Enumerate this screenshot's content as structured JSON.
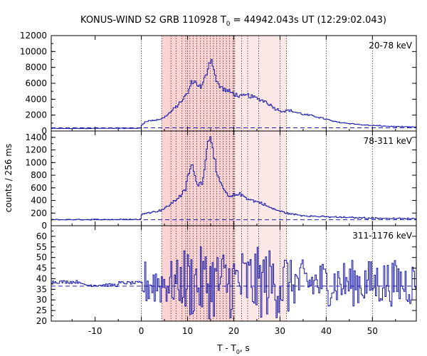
{
  "chart_data": {
    "type": "line",
    "title_prefix": "KONUS-WIND S2 GRB 110928 T",
    "title_sub": "0",
    "title_suffix": " = 44942.043s UT (12:29:02.043)",
    "ylabel": "counts / 256 ms",
    "xlabel_prefix": "T - T",
    "xlabel_sub": "0",
    "xlabel_suffix": ", s",
    "xlim": [
      -19.5,
      59.5
    ],
    "x_ticks": [
      -10,
      0,
      10,
      20,
      30,
      40,
      50
    ],
    "grid": "vertical dotted lines at tick positions",
    "shaded_interval": [
      4.4,
      20.2,
      31.4
    ],
    "spectral_interval_boundaries": [
      0,
      4.4,
      6.4,
      7.5,
      8.8,
      9.6,
      10.5,
      11.2,
      12.0,
      12.8,
      13.5,
      14.2,
      14.9,
      15.6,
      16.3,
      17.0,
      17.7,
      18.4,
      19.1,
      19.8,
      20.2,
      21.7,
      23.0,
      25.4,
      31.4
    ],
    "panels": [
      {
        "label": "20-78 keV",
        "ylim": [
          0,
          12000
        ],
        "y_ticks": [
          0,
          2000,
          4000,
          6000,
          8000,
          10000,
          12000
        ],
        "background": 400,
        "keyframes": [
          [
            -19.5,
            320
          ],
          [
            -0.2,
            340
          ],
          [
            0.1,
            750
          ],
          [
            1.0,
            1250
          ],
          [
            3.0,
            1350
          ],
          [
            4.5,
            1550
          ],
          [
            6.0,
            2200
          ],
          [
            8.0,
            3300
          ],
          [
            10.0,
            4700
          ],
          [
            11.0,
            6300
          ],
          [
            12.0,
            6000
          ],
          [
            13.0,
            5400
          ],
          [
            14.0,
            7000
          ],
          [
            14.6,
            8500
          ],
          [
            15.0,
            9100
          ],
          [
            15.6,
            8300
          ],
          [
            16.2,
            6200
          ],
          [
            17.0,
            5600
          ],
          [
            18.0,
            5200
          ],
          [
            20.0,
            4700
          ],
          [
            21.5,
            4300
          ],
          [
            23.0,
            4500
          ],
          [
            25.0,
            4100
          ],
          [
            27.0,
            3700
          ],
          [
            29.0,
            2800
          ],
          [
            30.5,
            2500
          ],
          [
            32.0,
            2600
          ],
          [
            35.0,
            2100
          ],
          [
            38.0,
            1800
          ],
          [
            42.0,
            1150
          ],
          [
            48.0,
            760
          ],
          [
            54.0,
            580
          ],
          [
            59.5,
            480
          ]
        ]
      },
      {
        "label": "78-311 keV",
        "ylim": [
          0,
          1500
        ],
        "y_ticks": [
          0,
          200,
          400,
          600,
          800,
          1000,
          1200,
          1400
        ],
        "background": 95,
        "keyframes": [
          [
            -19.5,
            95
          ],
          [
            -0.2,
            100
          ],
          [
            0.1,
            170
          ],
          [
            1.0,
            210
          ],
          [
            3.0,
            220
          ],
          [
            5.0,
            270
          ],
          [
            7.0,
            380
          ],
          [
            8.5,
            480
          ],
          [
            9.5,
            560
          ],
          [
            10.3,
            850
          ],
          [
            11.0,
            980
          ],
          [
            11.6,
            760
          ],
          [
            12.4,
            650
          ],
          [
            13.2,
            700
          ],
          [
            14.0,
            1100
          ],
          [
            14.6,
            1400
          ],
          [
            15.0,
            1460
          ],
          [
            15.6,
            1200
          ],
          [
            16.4,
            760
          ],
          [
            17.2,
            660
          ],
          [
            18.0,
            560
          ],
          [
            19.0,
            440
          ],
          [
            20.0,
            480
          ],
          [
            21.0,
            510
          ],
          [
            22.0,
            470
          ],
          [
            24.0,
            400
          ],
          [
            26.0,
            360
          ],
          [
            28.0,
            280
          ],
          [
            30.0,
            230
          ],
          [
            32.0,
            190
          ],
          [
            35.0,
            160
          ],
          [
            40.0,
            140
          ],
          [
            50.0,
            120
          ],
          [
            59.5,
            110
          ]
        ]
      },
      {
        "label": "311-1176 keV",
        "ylim": [
          20,
          65
        ],
        "y_ticks": [
          20,
          25,
          30,
          35,
          40,
          45,
          50,
          55,
          60
        ],
        "background": 36.5,
        "mean": 38,
        "keyframes": [
          [
            -19.5,
            38
          ],
          [
            -0.3,
            38
          ],
          [
            59.5,
            38
          ]
        ]
      }
    ]
  }
}
